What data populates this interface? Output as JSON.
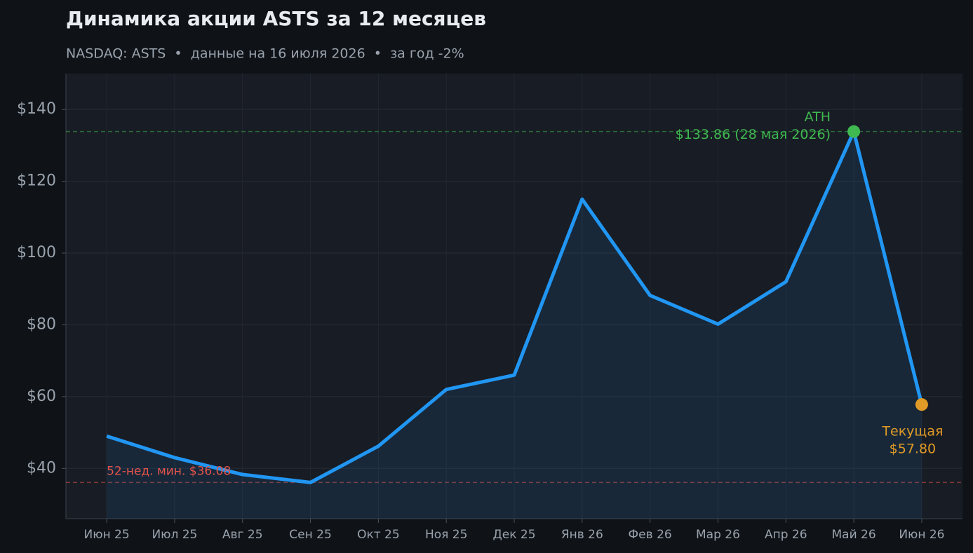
{
  "chart_data": {
    "type": "line",
    "title": "Динамика акции ASTS за 12 месяцев",
    "subtitle": "NASDAQ: ASTS  •  данные на 16 июля 2026  •  за год -2%",
    "categories": [
      "Июн 25",
      "Июл 25",
      "Авг 25",
      "Сен 25",
      "Окт 25",
      "Ноя 25",
      "Дек 25",
      "Янв 26",
      "Фев 26",
      "Мар 26",
      "Апр 26",
      "Май 26",
      "Июн 26"
    ],
    "values": [
      49,
      43,
      38.3,
      36.08,
      46.2,
      62,
      66,
      115,
      88.2,
      80.2,
      92,
      133.86,
      57.8
    ],
    "color": "#2196f3",
    "ylim": [
      26,
      150
    ],
    "yticks": [
      {
        "value": 40,
        "label": "$40"
      },
      {
        "value": 60,
        "label": "$60"
      },
      {
        "value": 80,
        "label": "$80"
      },
      {
        "value": 100,
        "label": "$100"
      },
      {
        "value": 120,
        "label": "$120"
      },
      {
        "value": 140,
        "label": "$140"
      }
    ],
    "grid": true,
    "ath_label": "ATH",
    "ath_text": "$133.86 (28 мая 2026)",
    "ath_color": "#3fb950",
    "current_label": "Текущая",
    "current_text": "$57.80",
    "current_color": "#e09b26",
    "low_text": "52-нед. мин. $36.08",
    "low_color": "#e5534b"
  }
}
